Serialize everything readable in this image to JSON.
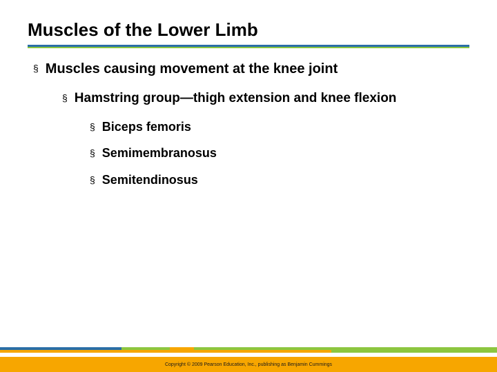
{
  "title": "Muscles of the Lower Limb",
  "bullets": {
    "lvl1": "Muscles causing movement at the knee joint",
    "lvl2": "Hamstring group—thigh extension and knee flexion",
    "lvl3a": "Biceps femoris",
    "lvl3b": "Semimembranosus",
    "lvl3c": "Semitendinosus"
  },
  "copyright": "Copyright © 2009 Pearson Education, Inc., publishing as Benjamin Cummings",
  "colors": {
    "blue": "#2a6ea6",
    "green": "#8cc63f",
    "orange": "#f7a600"
  }
}
